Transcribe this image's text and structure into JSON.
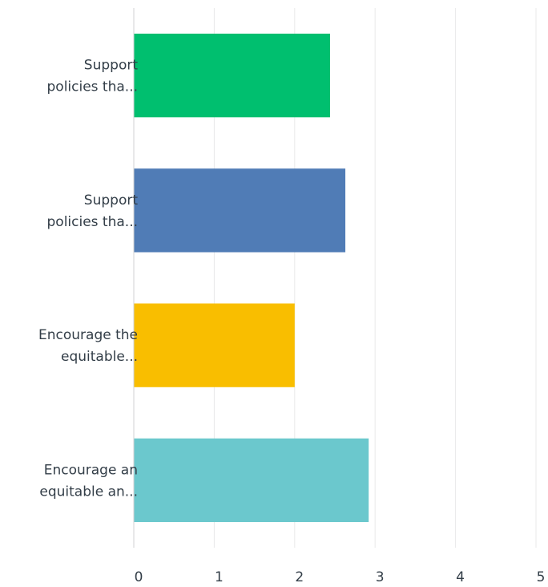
{
  "chart_data": {
    "type": "bar",
    "orientation": "horizontal",
    "title": "",
    "xlabel": "",
    "ylabel": "",
    "categories": [
      [
        "Support",
        "policies tha..."
      ],
      [
        "Support",
        "policies tha..."
      ],
      [
        "Encourage the",
        "equitable..."
      ],
      [
        "Encourage an",
        "equitable an..."
      ]
    ],
    "values": [
      2.44,
      2.63,
      2.0,
      2.92
    ],
    "bar_colors": [
      "#00bf6f",
      "#507cb6",
      "#f9be00",
      "#6bc8cd"
    ],
    "xlim": [
      0,
      5
    ],
    "xticks": [
      "0",
      "1",
      "2",
      "3",
      "4",
      "5"
    ],
    "grid": true,
    "legend": "none"
  }
}
